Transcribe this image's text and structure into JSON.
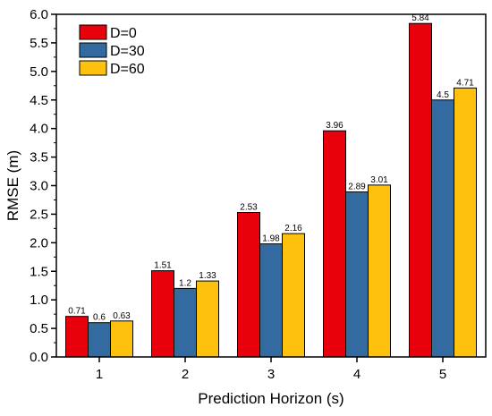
{
  "chart_data": {
    "type": "bar",
    "categories": [
      "1",
      "2",
      "3",
      "4",
      "5"
    ],
    "series": [
      {
        "name": "D=0",
        "color": "#e8000b",
        "values": [
          0.71,
          1.51,
          2.53,
          3.96,
          5.84
        ],
        "labels": [
          "0.71",
          "1.51",
          "2.53",
          "3.96",
          "5.84"
        ]
      },
      {
        "name": "D=30",
        "color": "#336aa0",
        "values": [
          0.6,
          1.2,
          1.98,
          2.89,
          4.5
        ],
        "labels": [
          "0.6",
          "1.2",
          "1.98",
          "2.89",
          "4.5"
        ]
      },
      {
        "name": "D=60",
        "color": "#fec20e",
        "values": [
          0.63,
          1.33,
          2.16,
          3.01,
          4.71
        ],
        "labels": [
          "0.63",
          "1.33",
          "2.16",
          "3.01",
          "4.71"
        ]
      }
    ],
    "xlabel": "Prediction Horizon (s)",
    "ylabel": "RMSE (m)",
    "ylim": [
      0,
      6
    ],
    "yticks": [
      "0.0",
      "0.5",
      "1.0",
      "1.5",
      "2.0",
      "2.5",
      "3.0",
      "3.5",
      "4.0",
      "4.5",
      "5.0",
      "5.5",
      "6.0"
    ],
    "grid": false,
    "legend_position": "top-left"
  }
}
